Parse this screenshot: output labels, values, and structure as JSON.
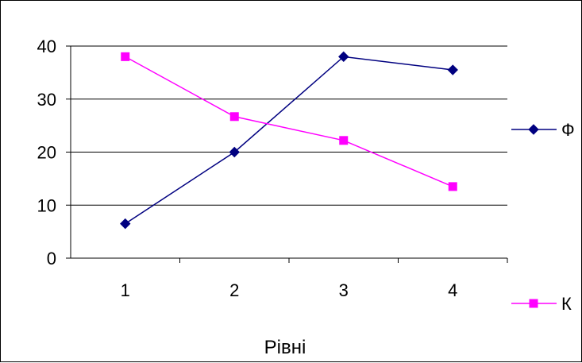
{
  "chart_data": {
    "type": "line",
    "title": "",
    "xlabel": "Рівні",
    "ylabel": "",
    "categories": [
      "1",
      "2",
      "3",
      "4"
    ],
    "ylim": [
      0,
      40
    ],
    "yticks": [
      "0",
      "10",
      "20",
      "30",
      "40"
    ],
    "grid": "horizontal major gridlines",
    "legend": "right",
    "series": [
      {
        "name": "Ф",
        "values": [
          6.5,
          20,
          38,
          35.5
        ],
        "color": "#000080",
        "marker": "diamond"
      },
      {
        "name": "К",
        "values": [
          38,
          26.7,
          22.2,
          13.5
        ],
        "color": "#ff00ff",
        "marker": "square"
      }
    ]
  }
}
